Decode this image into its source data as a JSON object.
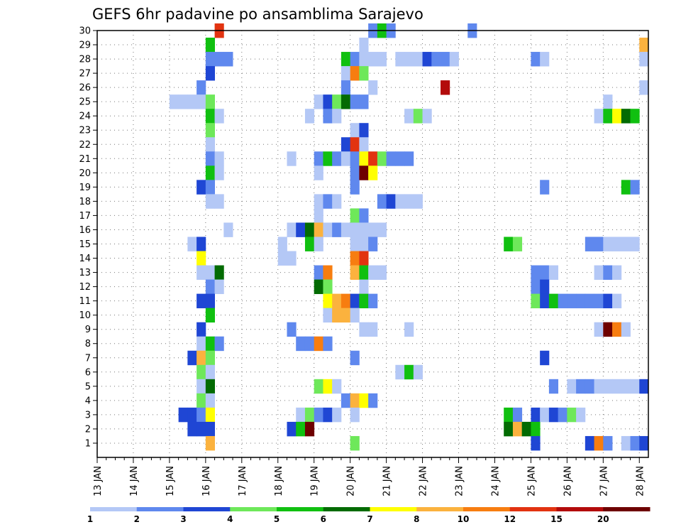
{
  "chart_data": {
    "type": "heatmap",
    "title": "GEFS 6hr padavine po ansamblima Sarajevo",
    "y_ticks": [
      "1",
      "2",
      "3",
      "4",
      "5",
      "6",
      "7",
      "8",
      "9",
      "10",
      "11",
      "12",
      "13",
      "14",
      "15",
      "16",
      "17",
      "18",
      "19",
      "20",
      "21",
      "22",
      "23",
      "24",
      "25",
      "26",
      "27",
      "28",
      "29",
      "30"
    ],
    "x_ticks": [
      "13 JAN",
      "14 JAN",
      "15 JAN",
      "16 JAN",
      "17 JAN",
      "18 JAN",
      "19 JAN",
      "20 JAN",
      "21 JAN",
      "22 JAN",
      "23 JAN",
      "24 JAN",
      "25 JAN",
      "26 JAN",
      "27 JAN",
      "28 JAN"
    ],
    "x_range": [
      0,
      61
    ],
    "y_range": [
      0,
      30
    ],
    "grid": true,
    "legend": {
      "placement": "bottom",
      "labels": [
        "1",
        "2",
        "3",
        "4",
        "5",
        "6",
        "7",
        "8",
        "10",
        "12",
        "15",
        "20"
      ],
      "colors": [
        "#b4c8f6",
        "#5f88ee",
        "#1f46d4",
        "#6ee85a",
        "#10c010",
        "#036b03",
        "#ffff00",
        "#fbb23e",
        "#f77d10",
        "#e23310",
        "#b30b0b",
        "#6e0000"
      ]
    },
    "levels": [
      "#b4c8f6",
      "#5f88ee",
      "#1f46d4",
      "#6ee85a",
      "#10c010",
      "#036b03",
      "#ffff00",
      "#fbb23e",
      "#f77d10",
      "#e23310",
      "#b30b0b",
      "#6e0000"
    ],
    "cells": [
      [
        13,
        30,
        9
      ],
      [
        30,
        30,
        1
      ],
      [
        31,
        30,
        4
      ],
      [
        32,
        30,
        1
      ],
      [
        41,
        30,
        1
      ],
      [
        12,
        29,
        4
      ],
      [
        29,
        29,
        0
      ],
      [
        60,
        29,
        7
      ],
      [
        12,
        28,
        1
      ],
      [
        13,
        28,
        1
      ],
      [
        14,
        28,
        1
      ],
      [
        27,
        28,
        4
      ],
      [
        28,
        28,
        1
      ],
      [
        29,
        28,
        0
      ],
      [
        30,
        28,
        0
      ],
      [
        31,
        28,
        0
      ],
      [
        33,
        28,
        0
      ],
      [
        34,
        28,
        0
      ],
      [
        35,
        28,
        0
      ],
      [
        36,
        28,
        2
      ],
      [
        37,
        28,
        1
      ],
      [
        38,
        28,
        1
      ],
      [
        39,
        28,
        0
      ],
      [
        48,
        28,
        1
      ],
      [
        49,
        28,
        0
      ],
      [
        60,
        28,
        0
      ],
      [
        12,
        27,
        2
      ],
      [
        27,
        27,
        0
      ],
      [
        28,
        27,
        8
      ],
      [
        29,
        27,
        3
      ],
      [
        11,
        26,
        1
      ],
      [
        27,
        26,
        1
      ],
      [
        30,
        26,
        0
      ],
      [
        38,
        26,
        10
      ],
      [
        60,
        26,
        0
      ],
      [
        8,
        25,
        0
      ],
      [
        9,
        25,
        0
      ],
      [
        10,
        25,
        0
      ],
      [
        11,
        25,
        0
      ],
      [
        12,
        25,
        3
      ],
      [
        24,
        25,
        0
      ],
      [
        25,
        25,
        2
      ],
      [
        26,
        25,
        3
      ],
      [
        27,
        25,
        5
      ],
      [
        28,
        25,
        1
      ],
      [
        29,
        25,
        1
      ],
      [
        56,
        25,
        0
      ],
      [
        12,
        24,
        4
      ],
      [
        13,
        24,
        0
      ],
      [
        23,
        24,
        0
      ],
      [
        25,
        24,
        1
      ],
      [
        26,
        24,
        0
      ],
      [
        34,
        24,
        0
      ],
      [
        35,
        24,
        3
      ],
      [
        36,
        24,
        0
      ],
      [
        55,
        24,
        0
      ],
      [
        56,
        24,
        4
      ],
      [
        57,
        24,
        6
      ],
      [
        58,
        24,
        5
      ],
      [
        59,
        24,
        4
      ],
      [
        12,
        23,
        3
      ],
      [
        28,
        23,
        0
      ],
      [
        29,
        23,
        2
      ],
      [
        12,
        22,
        0
      ],
      [
        27,
        22,
        2
      ],
      [
        28,
        22,
        9
      ],
      [
        29,
        22,
        0
      ],
      [
        12,
        21,
        1
      ],
      [
        13,
        21,
        0
      ],
      [
        21,
        21,
        0
      ],
      [
        24,
        21,
        1
      ],
      [
        25,
        21,
        4
      ],
      [
        26,
        21,
        1
      ],
      [
        27,
        21,
        0
      ],
      [
        28,
        21,
        1
      ],
      [
        29,
        21,
        6
      ],
      [
        30,
        21,
        9
      ],
      [
        31,
        21,
        3
      ],
      [
        32,
        21,
        1
      ],
      [
        33,
        21,
        1
      ],
      [
        34,
        21,
        1
      ],
      [
        12,
        20,
        4
      ],
      [
        13,
        20,
        0
      ],
      [
        24,
        20,
        0
      ],
      [
        28,
        20,
        1
      ],
      [
        29,
        20,
        11
      ],
      [
        30,
        20,
        6
      ],
      [
        11,
        19,
        2
      ],
      [
        12,
        19,
        1
      ],
      [
        28,
        19,
        1
      ],
      [
        49,
        19,
        1
      ],
      [
        58,
        19,
        4
      ],
      [
        59,
        19,
        1
      ],
      [
        12,
        18,
        0
      ],
      [
        13,
        18,
        0
      ],
      [
        24,
        18,
        0
      ],
      [
        25,
        18,
        1
      ],
      [
        26,
        18,
        0
      ],
      [
        31,
        18,
        1
      ],
      [
        32,
        18,
        2
      ],
      [
        33,
        18,
        0
      ],
      [
        34,
        18,
        0
      ],
      [
        35,
        18,
        0
      ],
      [
        24,
        17,
        0
      ],
      [
        28,
        17,
        3
      ],
      [
        29,
        17,
        1
      ],
      [
        14,
        16,
        0
      ],
      [
        21,
        16,
        0
      ],
      [
        22,
        16,
        2
      ],
      [
        23,
        16,
        5
      ],
      [
        24,
        16,
        7
      ],
      [
        25,
        16,
        0
      ],
      [
        26,
        16,
        1
      ],
      [
        27,
        16,
        0
      ],
      [
        28,
        16,
        0
      ],
      [
        29,
        16,
        0
      ],
      [
        30,
        16,
        0
      ],
      [
        31,
        16,
        0
      ],
      [
        10,
        15,
        0
      ],
      [
        11,
        15,
        2
      ],
      [
        20,
        15,
        0
      ],
      [
        23,
        15,
        4
      ],
      [
        24,
        15,
        0
      ],
      [
        28,
        15,
        0
      ],
      [
        29,
        15,
        0
      ],
      [
        30,
        15,
        1
      ],
      [
        45,
        15,
        4
      ],
      [
        46,
        15,
        3
      ],
      [
        54,
        15,
        1
      ],
      [
        55,
        15,
        1
      ],
      [
        56,
        15,
        0
      ],
      [
        57,
        15,
        0
      ],
      [
        58,
        15,
        0
      ],
      [
        59,
        15,
        0
      ],
      [
        11,
        14,
        6
      ],
      [
        20,
        14,
        0
      ],
      [
        21,
        14,
        0
      ],
      [
        28,
        14,
        8
      ],
      [
        29,
        14,
        9
      ],
      [
        11,
        13,
        0
      ],
      [
        12,
        13,
        0
      ],
      [
        13,
        13,
        5
      ],
      [
        24,
        13,
        1
      ],
      [
        25,
        13,
        8
      ],
      [
        28,
        13,
        7
      ],
      [
        29,
        13,
        4
      ],
      [
        30,
        13,
        0
      ],
      [
        31,
        13,
        0
      ],
      [
        48,
        13,
        1
      ],
      [
        49,
        13,
        1
      ],
      [
        50,
        13,
        0
      ],
      [
        55,
        13,
        0
      ],
      [
        56,
        13,
        1
      ],
      [
        57,
        13,
        0
      ],
      [
        12,
        12,
        1
      ],
      [
        13,
        12,
        0
      ],
      [
        24,
        12,
        5
      ],
      [
        25,
        12,
        3
      ],
      [
        29,
        12,
        0
      ],
      [
        48,
        12,
        1
      ],
      [
        49,
        12,
        2
      ],
      [
        11,
        11,
        2
      ],
      [
        12,
        11,
        2
      ],
      [
        25,
        11,
        6
      ],
      [
        26,
        11,
        7
      ],
      [
        27,
        11,
        8
      ],
      [
        28,
        11,
        2
      ],
      [
        29,
        11,
        4
      ],
      [
        30,
        11,
        1
      ],
      [
        48,
        11,
        3
      ],
      [
        49,
        11,
        2
      ],
      [
        50,
        11,
        4
      ],
      [
        51,
        11,
        1
      ],
      [
        52,
        11,
        1
      ],
      [
        53,
        11,
        1
      ],
      [
        54,
        11,
        1
      ],
      [
        55,
        11,
        1
      ],
      [
        56,
        11,
        2
      ],
      [
        57,
        11,
        0
      ],
      [
        12,
        10,
        4
      ],
      [
        25,
        10,
        0
      ],
      [
        26,
        10,
        7
      ],
      [
        27,
        10,
        7
      ],
      [
        28,
        10,
        0
      ],
      [
        11,
        9,
        2
      ],
      [
        21,
        9,
        1
      ],
      [
        29,
        9,
        0
      ],
      [
        30,
        9,
        0
      ],
      [
        34,
        9,
        0
      ],
      [
        55,
        9,
        0
      ],
      [
        56,
        9,
        11
      ],
      [
        57,
        9,
        8
      ],
      [
        58,
        9,
        0
      ],
      [
        11,
        8,
        0
      ],
      [
        12,
        8,
        4
      ],
      [
        13,
        8,
        1
      ],
      [
        22,
        8,
        1
      ],
      [
        23,
        8,
        1
      ],
      [
        24,
        8,
        8
      ],
      [
        25,
        8,
        1
      ],
      [
        10,
        7,
        2
      ],
      [
        11,
        7,
        7
      ],
      [
        12,
        7,
        3
      ],
      [
        28,
        7,
        1
      ],
      [
        49,
        7,
        2
      ],
      [
        11,
        6,
        3
      ],
      [
        12,
        6,
        0
      ],
      [
        33,
        6,
        0
      ],
      [
        34,
        6,
        4
      ],
      [
        35,
        6,
        0
      ],
      [
        11,
        5,
        0
      ],
      [
        12,
        5,
        5
      ],
      [
        24,
        5,
        3
      ],
      [
        25,
        5,
        6
      ],
      [
        26,
        5,
        0
      ],
      [
        50,
        5,
        1
      ],
      [
        52,
        5,
        0
      ],
      [
        53,
        5,
        1
      ],
      [
        54,
        5,
        1
      ],
      [
        55,
        5,
        0
      ],
      [
        56,
        5,
        0
      ],
      [
        57,
        5,
        0
      ],
      [
        58,
        5,
        0
      ],
      [
        59,
        5,
        0
      ],
      [
        60,
        5,
        2
      ],
      [
        11,
        4,
        3
      ],
      [
        12,
        4,
        0
      ],
      [
        27,
        4,
        1
      ],
      [
        28,
        4,
        7
      ],
      [
        29,
        4,
        6
      ],
      [
        30,
        4,
        1
      ],
      [
        9,
        3,
        2
      ],
      [
        10,
        3,
        2
      ],
      [
        11,
        3,
        1
      ],
      [
        12,
        3,
        6
      ],
      [
        22,
        3,
        0
      ],
      [
        23,
        3,
        3
      ],
      [
        24,
        3,
        1
      ],
      [
        25,
        3,
        2
      ],
      [
        26,
        3,
        0
      ],
      [
        28,
        3,
        0
      ],
      [
        45,
        3,
        4
      ],
      [
        46,
        3,
        1
      ],
      [
        48,
        3,
        2
      ],
      [
        49,
        3,
        0
      ],
      [
        50,
        3,
        2
      ],
      [
        51,
        3,
        1
      ],
      [
        52,
        3,
        3
      ],
      [
        53,
        3,
        0
      ],
      [
        10,
        2,
        2
      ],
      [
        11,
        2,
        2
      ],
      [
        12,
        2,
        2
      ],
      [
        21,
        2,
        2
      ],
      [
        22,
        2,
        4
      ],
      [
        23,
        2,
        11
      ],
      [
        45,
        2,
        5
      ],
      [
        46,
        2,
        7
      ],
      [
        47,
        2,
        5
      ],
      [
        48,
        2,
        4
      ],
      [
        12,
        1,
        7
      ],
      [
        28,
        1,
        3
      ],
      [
        48,
        1,
        2
      ],
      [
        54,
        1,
        2
      ],
      [
        55,
        1,
        8
      ],
      [
        56,
        1,
        1
      ],
      [
        58,
        1,
        0
      ],
      [
        59,
        1,
        1
      ],
      [
        60,
        1,
        2
      ]
    ]
  }
}
